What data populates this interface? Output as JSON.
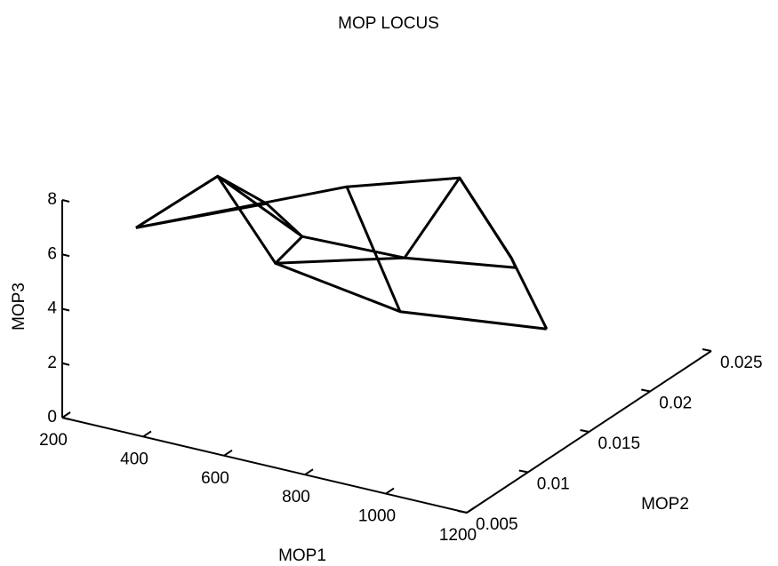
{
  "chart_data": {
    "type": "line3d",
    "title": "MOP LOCUS",
    "xlabel": "MOP1",
    "ylabel": "MOP2",
    "zlabel": "MOP3",
    "xlim": [
      200,
      1200
    ],
    "xticks": [
      200,
      400,
      600,
      800,
      1000,
      1200
    ],
    "ylim": [
      0.005,
      0.025
    ],
    "yticks": [
      0.005,
      0.01,
      0.015,
      0.02,
      0.025
    ],
    "zlim": [
      0,
      8
    ],
    "zticks": [
      0,
      2,
      4,
      6,
      8
    ],
    "color": "#000000",
    "series": [
      {
        "x": [
          231,
          433,
          576,
          884
        ],
        "y": [
          0.01,
          0.01,
          0.01,
          0.01
        ],
        "z": [
          5.6,
          8.2,
          5.5,
          4.8
        ]
      },
      {
        "x": [
          403,
          491,
          744,
          1019
        ],
        "y": [
          0.015,
          0.015,
          0.015,
          0.015
        ],
        "z": [
          5.6,
          4.7,
          4.8,
          5.4
        ]
      },
      {
        "x": [
          450,
          729,
          857,
          944
        ],
        "y": [
          0.02,
          0.02,
          0.02,
          0.02
        ],
        "z": [
          4.9,
          6.2,
          3.7,
          1.4
        ]
      },
      {
        "x": [
          231,
          450,
          884,
          944
        ],
        "y": [
          0.01,
          0.02,
          0.01,
          0.02
        ],
        "z": [
          5.6,
          4.9,
          4.8,
          1.4
        ]
      },
      {
        "x": [
          231,
          403,
          433,
          491,
          576,
          744,
          729,
          857,
          1019
        ],
        "y": [
          0.01,
          0.015,
          0.01,
          0.015,
          0.01,
          0.015,
          0.02,
          0.02,
          0.015
        ],
        "z": [
          5.6,
          5.6,
          8.2,
          4.7,
          5.5,
          4.8,
          6.2,
          3.7,
          5.4
        ]
      }
    ]
  }
}
